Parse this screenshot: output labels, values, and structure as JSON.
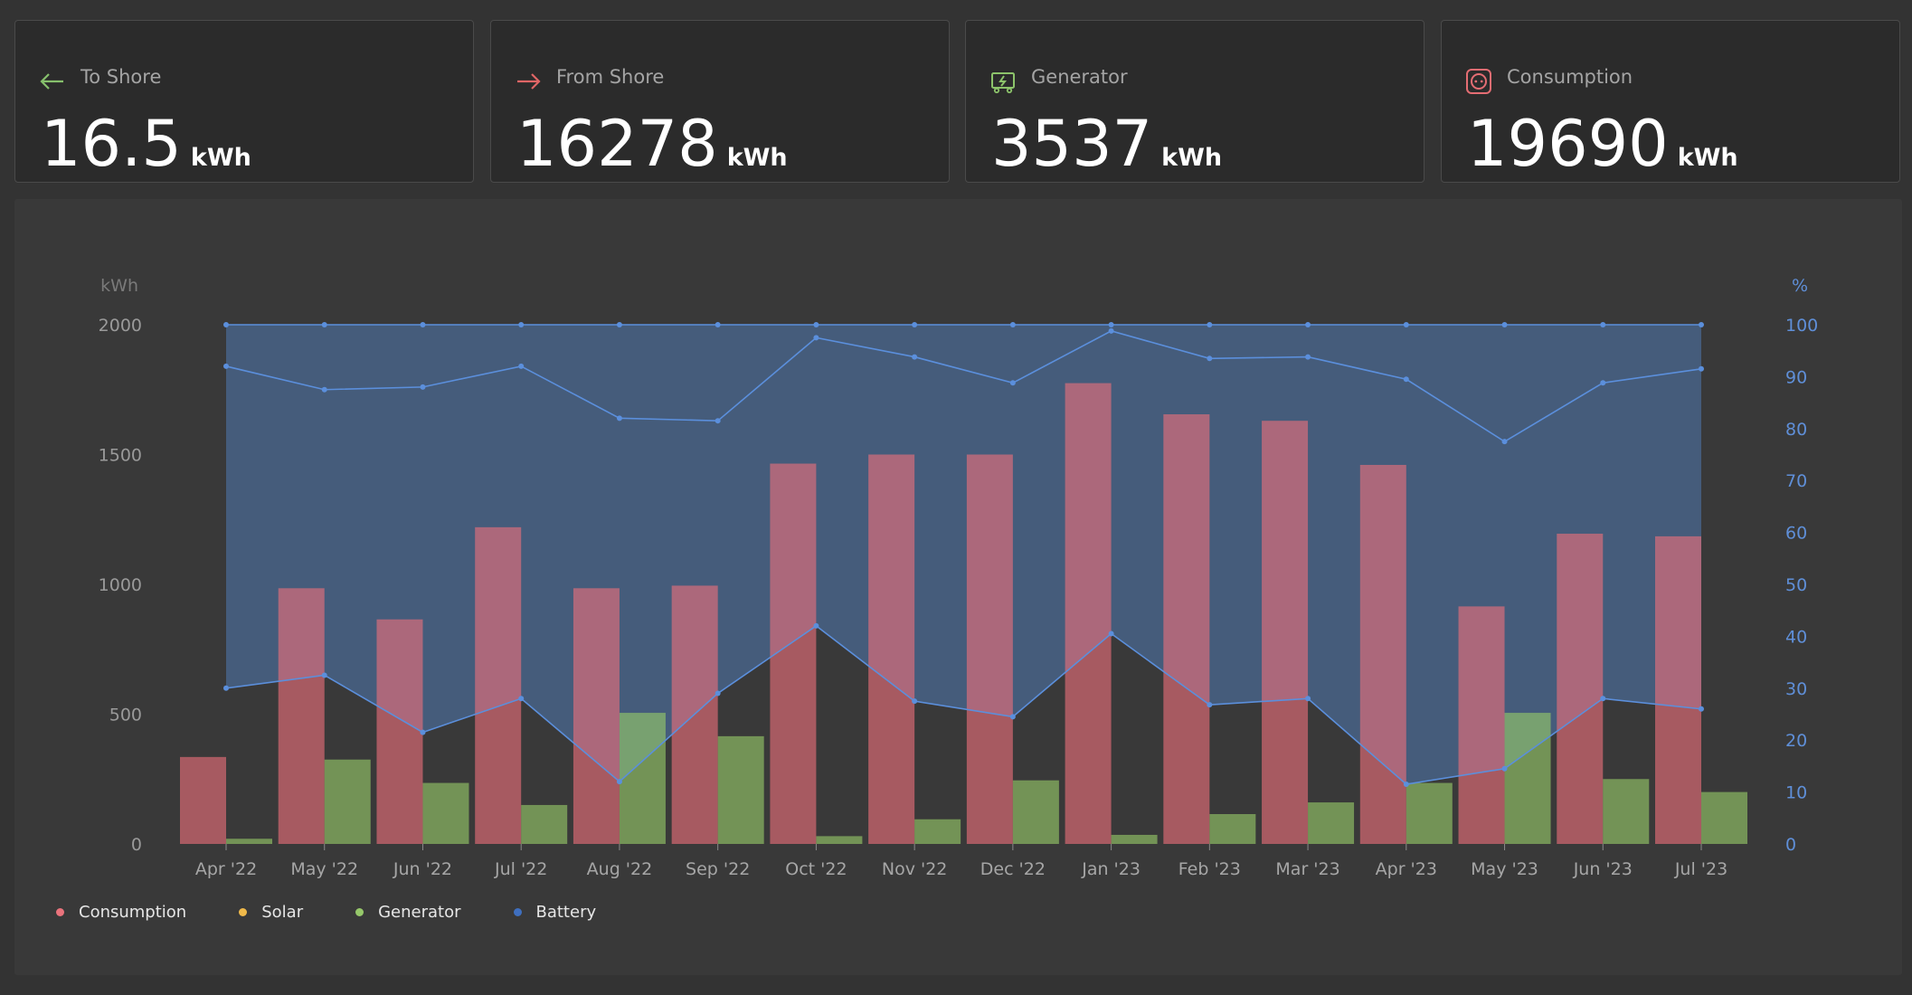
{
  "cards": [
    {
      "label": "To Shore",
      "value": "16.5",
      "unit": "kWh",
      "icon": "arrow-left-icon",
      "color": "#86c06c"
    },
    {
      "label": "From Shore",
      "value": "16278",
      "unit": "kWh",
      "icon": "arrow-right-icon",
      "color": "#e06666"
    },
    {
      "label": "Generator",
      "value": "3537",
      "unit": "kWh",
      "icon": "generator-icon",
      "color": "#8cc36a"
    },
    {
      "label": "Consumption",
      "value": "19690",
      "unit": "kWh",
      "icon": "socket-icon",
      "color": "#e46d73"
    }
  ],
  "legend": [
    {
      "label": "Consumption",
      "color": "#ea737c"
    },
    {
      "label": "Solar",
      "color": "#f0b94a"
    },
    {
      "label": "Generator",
      "color": "#96c86a"
    },
    {
      "label": "Battery",
      "color": "#3f6fbf"
    }
  ],
  "chart_data": {
    "type": "bar",
    "categories": [
      "Apr '22",
      "May '22",
      "Jun '22",
      "Jul '22",
      "Aug '22",
      "Sep '22",
      "Oct '22",
      "Nov '22",
      "Dec '22",
      "Jan '23",
      "Feb '23",
      "Mar '23",
      "Apr '23",
      "May '23",
      "Jun '23",
      "Jul '23"
    ],
    "ylabel": "kWh",
    "y2label": "%",
    "ylim": [
      0,
      2000
    ],
    "y2lim": [
      0,
      100
    ],
    "yticks": [
      0,
      500,
      1000,
      1500,
      2000
    ],
    "y2ticks": [
      0,
      10,
      20,
      30,
      40,
      50,
      60,
      70,
      80,
      90,
      100
    ],
    "series": [
      {
        "name": "Consumption",
        "type": "bar",
        "axis": "left",
        "values": [
          335,
          985,
          865,
          1220,
          985,
          995,
          1465,
          1500,
          1500,
          1775,
          1655,
          1630,
          1460,
          915,
          1195,
          1185
        ]
      },
      {
        "name": "Generator",
        "type": "bar",
        "axis": "left",
        "values": [
          20,
          325,
          235,
          150,
          505,
          415,
          30,
          95,
          245,
          35,
          115,
          160,
          235,
          505,
          250,
          200
        ]
      },
      {
        "name": "Battery",
        "type": "area",
        "axis": "right",
        "max": [
          100,
          100,
          100,
          100,
          100,
          100,
          100,
          100,
          100,
          100,
          100,
          100,
          100,
          100,
          100,
          100
        ],
        "min": [
          30,
          32.5,
          21.5,
          28,
          12,
          29,
          42,
          27.5,
          24.5,
          40.5,
          26.8,
          28,
          11.5,
          14.5,
          28,
          26
        ],
        "avg": [
          92,
          87.5,
          88,
          92,
          82,
          81.5,
          97.5,
          93.8,
          88.8,
          98.8,
          93.5,
          93.8,
          89.5,
          77.5,
          88.8,
          91.5
        ]
      }
    ]
  }
}
